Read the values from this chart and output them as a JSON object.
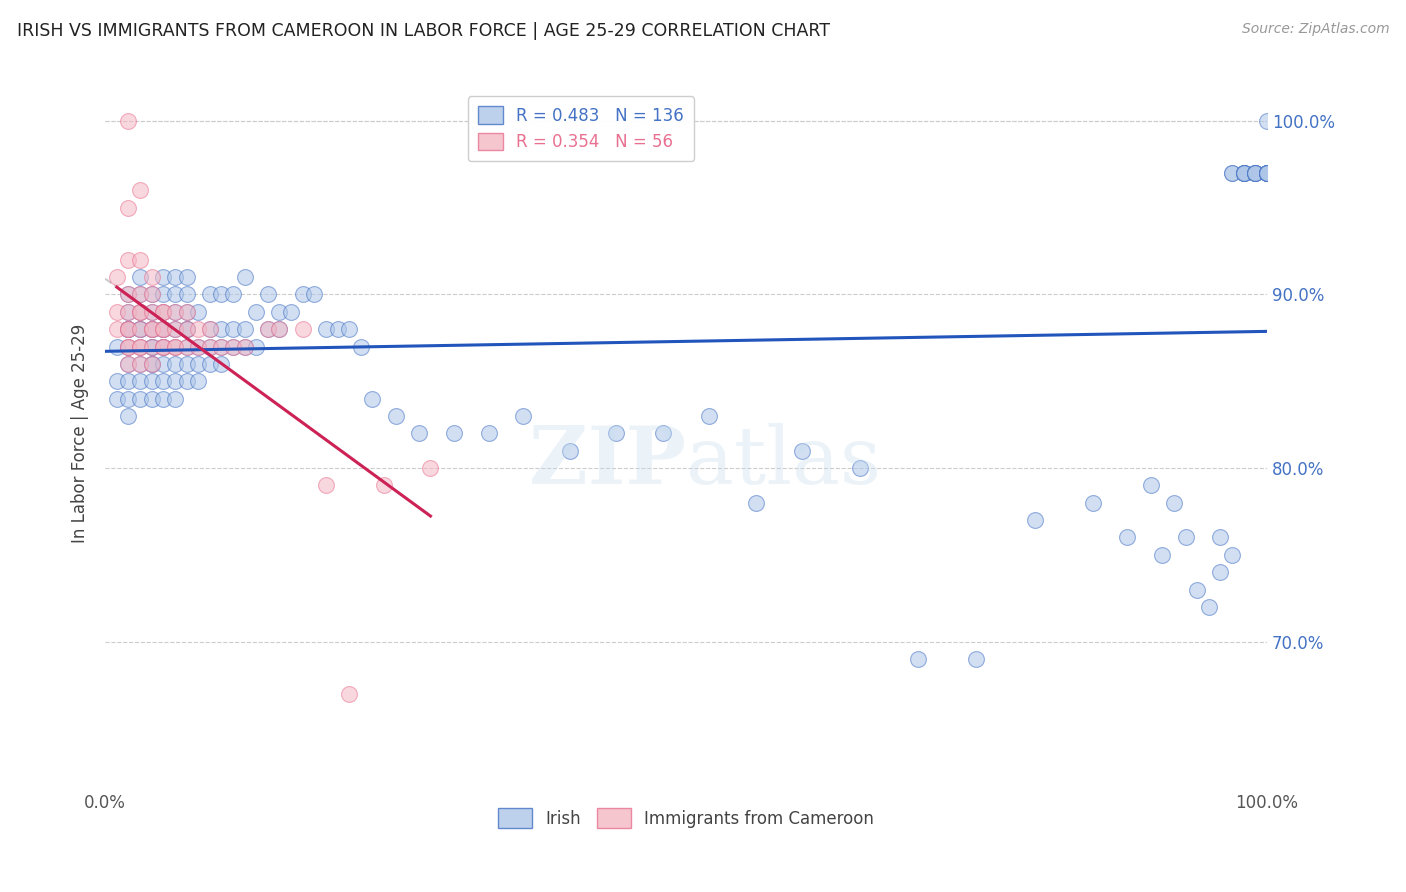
{
  "title": "IRISH VS IMMIGRANTS FROM CAMEROON IN LABOR FORCE | AGE 25-29 CORRELATION CHART",
  "source": "Source: ZipAtlas.com",
  "ylabel": "In Labor Force | Age 25-29",
  "x_min": 0.0,
  "x_max": 1.0,
  "y_min": 0.615,
  "y_max": 1.025,
  "x_tick_labels": [
    "0.0%",
    "100.0%"
  ],
  "y_tick_labels": [
    "70.0%",
    "80.0%",
    "90.0%",
    "100.0%"
  ],
  "y_tick_values": [
    0.7,
    0.8,
    0.9,
    1.0
  ],
  "grid_color": "#cccccc",
  "blue_fill": "#aec6e8",
  "blue_edge": "#4472c4",
  "pink_fill": "#f4b8c4",
  "pink_edge": "#e87090",
  "blue_line_color": "#2255bb",
  "pink_line_color": "#cc2255",
  "pink_dash_color": "#cccccc",
  "R_blue": 0.483,
  "N_blue": 136,
  "R_pink": 0.354,
  "N_pink": 56,
  "legend_label_blue": "Irish",
  "legend_label_pink": "Immigrants from Cameroon",
  "watermark": "ZIPatlas",
  "blue_scatter_x": [
    0.01,
    0.01,
    0.01,
    0.02,
    0.02,
    0.02,
    0.02,
    0.02,
    0.02,
    0.02,
    0.02,
    0.02,
    0.02,
    0.03,
    0.03,
    0.03,
    0.03,
    0.03,
    0.03,
    0.03,
    0.03,
    0.03,
    0.04,
    0.04,
    0.04,
    0.04,
    0.04,
    0.04,
    0.04,
    0.04,
    0.04,
    0.04,
    0.05,
    0.05,
    0.05,
    0.05,
    0.05,
    0.05,
    0.05,
    0.05,
    0.05,
    0.05,
    0.06,
    0.06,
    0.06,
    0.06,
    0.06,
    0.06,
    0.06,
    0.06,
    0.07,
    0.07,
    0.07,
    0.07,
    0.07,
    0.07,
    0.07,
    0.07,
    0.08,
    0.08,
    0.08,
    0.08,
    0.09,
    0.09,
    0.09,
    0.09,
    0.1,
    0.1,
    0.1,
    0.1,
    0.11,
    0.11,
    0.11,
    0.12,
    0.12,
    0.12,
    0.13,
    0.13,
    0.14,
    0.14,
    0.15,
    0.15,
    0.16,
    0.17,
    0.18,
    0.19,
    0.2,
    0.21,
    0.22,
    0.23,
    0.25,
    0.27,
    0.3,
    0.33,
    0.36,
    0.4,
    0.44,
    0.48,
    0.52,
    0.56,
    0.6,
    0.65,
    0.7,
    0.75,
    0.8,
    0.85,
    0.88,
    0.9,
    0.91,
    0.92,
    0.93,
    0.94,
    0.95,
    0.96,
    0.96,
    0.97,
    0.97,
    0.97,
    0.98,
    0.98,
    0.98,
    0.98,
    0.98,
    0.99,
    0.99,
    0.99,
    0.99,
    0.99,
    1.0,
    1.0,
    1.0,
    1.0,
    1.0,
    1.0,
    1.0,
    1.0
  ],
  "blue_scatter_y": [
    0.84,
    0.85,
    0.87,
    0.83,
    0.84,
    0.85,
    0.86,
    0.87,
    0.88,
    0.88,
    0.88,
    0.89,
    0.9,
    0.84,
    0.85,
    0.86,
    0.87,
    0.88,
    0.88,
    0.89,
    0.9,
    0.91,
    0.84,
    0.85,
    0.86,
    0.86,
    0.87,
    0.87,
    0.88,
    0.88,
    0.89,
    0.9,
    0.84,
    0.85,
    0.86,
    0.87,
    0.87,
    0.88,
    0.88,
    0.89,
    0.9,
    0.91,
    0.84,
    0.85,
    0.86,
    0.87,
    0.88,
    0.89,
    0.9,
    0.91,
    0.85,
    0.86,
    0.87,
    0.88,
    0.88,
    0.89,
    0.9,
    0.91,
    0.85,
    0.86,
    0.87,
    0.89,
    0.86,
    0.87,
    0.88,
    0.9,
    0.86,
    0.87,
    0.88,
    0.9,
    0.87,
    0.88,
    0.9,
    0.87,
    0.88,
    0.91,
    0.87,
    0.89,
    0.88,
    0.9,
    0.88,
    0.89,
    0.89,
    0.9,
    0.9,
    0.88,
    0.88,
    0.88,
    0.87,
    0.84,
    0.83,
    0.82,
    0.82,
    0.82,
    0.83,
    0.81,
    0.82,
    0.82,
    0.83,
    0.78,
    0.81,
    0.8,
    0.69,
    0.69,
    0.77,
    0.78,
    0.76,
    0.79,
    0.75,
    0.78,
    0.76,
    0.73,
    0.72,
    0.74,
    0.76,
    0.75,
    0.97,
    0.97,
    0.97,
    0.97,
    0.97,
    0.97,
    0.97,
    0.97,
    0.97,
    0.97,
    0.97,
    0.97,
    0.97,
    0.97,
    0.97,
    0.97,
    0.97,
    0.97,
    0.97,
    1.0
  ],
  "pink_scatter_x": [
    0.01,
    0.01,
    0.01,
    0.02,
    0.02,
    0.02,
    0.02,
    0.02,
    0.02,
    0.02,
    0.02,
    0.02,
    0.02,
    0.03,
    0.03,
    0.03,
    0.03,
    0.03,
    0.03,
    0.03,
    0.03,
    0.03,
    0.04,
    0.04,
    0.04,
    0.04,
    0.04,
    0.04,
    0.04,
    0.05,
    0.05,
    0.05,
    0.05,
    0.05,
    0.05,
    0.06,
    0.06,
    0.06,
    0.06,
    0.07,
    0.07,
    0.07,
    0.08,
    0.08,
    0.09,
    0.09,
    0.1,
    0.11,
    0.12,
    0.14,
    0.15,
    0.17,
    0.19,
    0.21,
    0.24,
    0.28
  ],
  "pink_scatter_y": [
    0.88,
    0.89,
    0.91,
    0.86,
    0.87,
    0.87,
    0.88,
    0.88,
    0.89,
    0.9,
    0.92,
    0.95,
    1.0,
    0.86,
    0.87,
    0.87,
    0.88,
    0.89,
    0.89,
    0.9,
    0.92,
    0.96,
    0.86,
    0.87,
    0.88,
    0.88,
    0.89,
    0.9,
    0.91,
    0.87,
    0.87,
    0.88,
    0.88,
    0.89,
    0.89,
    0.87,
    0.87,
    0.88,
    0.89,
    0.87,
    0.88,
    0.89,
    0.87,
    0.88,
    0.87,
    0.88,
    0.87,
    0.87,
    0.87,
    0.88,
    0.88,
    0.88,
    0.79,
    0.67,
    0.79,
    0.8
  ]
}
